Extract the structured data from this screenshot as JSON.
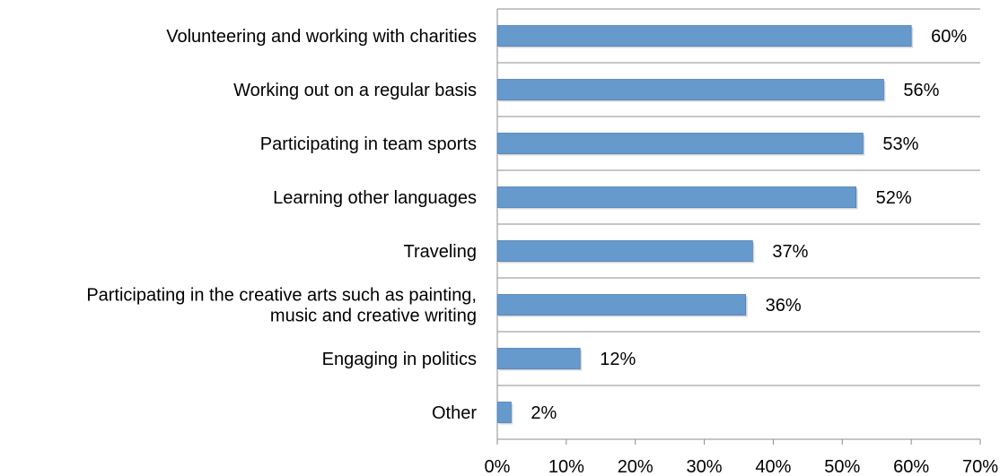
{
  "chart_data": {
    "type": "bar",
    "orientation": "horizontal",
    "categories": [
      [
        "Volunteering and working with charities"
      ],
      [
        "Working out on a regular basis"
      ],
      [
        "Participating in team sports"
      ],
      [
        "Learning other languages"
      ],
      [
        "Traveling"
      ],
      [
        "Participating in the creative arts such as painting,",
        "music and creative writing"
      ],
      [
        "Engaging in politics"
      ],
      [
        "Other"
      ]
    ],
    "values": [
      60,
      56,
      53,
      52,
      37,
      36,
      12,
      2
    ],
    "data_labels": [
      "60%",
      "56%",
      "53%",
      "52%",
      "37%",
      "36%",
      "12%",
      "2%"
    ],
    "xlim": [
      0,
      70
    ],
    "x_ticks": [
      0,
      10,
      20,
      30,
      40,
      50,
      60,
      70
    ],
    "x_tick_labels": [
      "0%",
      "10%",
      "20%",
      "30%",
      "40%",
      "50%",
      "60%",
      "70%"
    ],
    "grid": "horizontal-separators",
    "legend": "none",
    "title": "",
    "xlabel": "",
    "ylabel": "",
    "colors": {
      "bar": "#6699cc",
      "bar_edge": "#4f7fb3",
      "shadow": "#bdbdbd",
      "axis": "#8c8c8c"
    }
  }
}
